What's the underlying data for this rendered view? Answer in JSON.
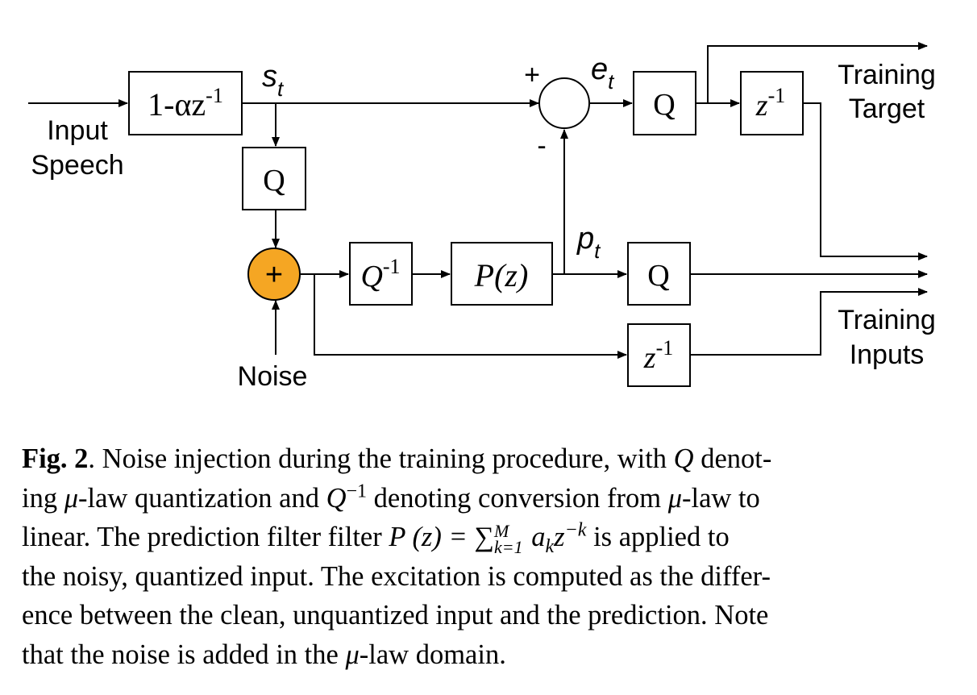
{
  "diagram": {
    "labels": {
      "input_speech_line1": "Input",
      "input_speech_line2": "Speech",
      "pre_emphasis": "1-αz",
      "pre_emphasis_exp": "-1",
      "s_t_base": "s",
      "s_t_sub": "t",
      "q_top": "Q",
      "plus_sign": "+",
      "minus_sign": "-",
      "e_t_base": "e",
      "e_t_sub": "t",
      "q_right_top": "Q",
      "z_top_base": "z",
      "z_top_exp": "-1",
      "training_target_line1": "Training",
      "training_target_line2": "Target",
      "adder_symbol": "+",
      "noise": "Noise",
      "q_inv_base": "Q",
      "q_inv_exp": "-1",
      "pz": "P(z)",
      "p_t_base": "p",
      "p_t_sub": "t",
      "q_bottom": "Q",
      "z_bottom_base": "z",
      "z_bottom_exp": "-1",
      "training_inputs_line1": "Training",
      "training_inputs_line2": "Inputs"
    },
    "colors": {
      "adder_fill": "#f5a623",
      "stroke": "#000000"
    }
  },
  "caption": {
    "label": "Fig. 2",
    "l1_a": ". Noise injection during the training procedure, with ",
    "l1_q": "Q",
    "l1_b": " denot-",
    "l2_a": "ing ",
    "l2_mu": "μ",
    "l2_b": "-law quantization and ",
    "l2_q": "Q",
    "l2_qexp": "−1",
    "l2_c": " denoting conversion from ",
    "l2_mu2": "μ",
    "l2_d": "-law to",
    "l3_a": "linear. The prediction filter filter ",
    "l3_p": "P",
    "l3_pz": " (z) = ",
    "l3_sum": "∑",
    "l3_sum_sup": "M",
    "l3_sum_sub": "k=1",
    "l3_ak": " a",
    "l3_ak_sub": "k",
    "l3_z": "z",
    "l3_zexp": "−k",
    "l3_b": " is applied to",
    "l4": "the noisy, quantized input. The excitation is computed as the differ-",
    "l5": "ence between the clean, unquantized input and the prediction. Note",
    "l6_a": "that the noise is added in the ",
    "l6_mu": "μ",
    "l6_b": "-law domain."
  }
}
